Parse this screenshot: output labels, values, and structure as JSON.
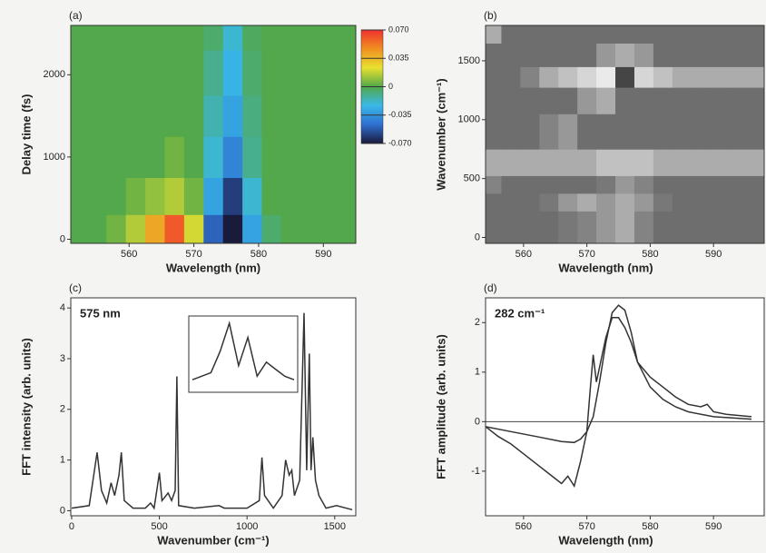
{
  "chart_data": [
    {
      "type": "heatmap",
      "panel": "(a)",
      "xlabel": "Wavelength (nm)",
      "ylabel": "Delay time (fs)",
      "xlim": [
        551,
        595
      ],
      "ylim": [
        -50,
        2600
      ],
      "xticks": [
        560,
        570,
        580,
        590
      ],
      "yticks": [
        0,
        1000,
        2000
      ],
      "x": [
        555,
        558,
        561,
        564,
        567,
        570,
        573,
        576,
        579,
        582,
        585,
        588,
        591,
        594
      ],
      "y": [
        100,
        500,
        1000,
        1500,
        2000,
        2600
      ],
      "z": [
        [
          0,
          0.005,
          0.015,
          0.04,
          0.06,
          0.02,
          -0.05,
          -0.07,
          -0.03,
          -0.005,
          0,
          0,
          0,
          0
        ],
        [
          0,
          0,
          0.005,
          0.01,
          0.015,
          0.005,
          -0.03,
          -0.06,
          -0.02,
          0,
          0,
          0,
          0,
          0
        ],
        [
          0,
          0,
          0,
          0,
          0.005,
          0,
          -0.02,
          -0.04,
          -0.01,
          0,
          0,
          0,
          0,
          0
        ],
        [
          0,
          0,
          0,
          0,
          0,
          0,
          -0.015,
          -0.03,
          -0.008,
          0,
          0,
          0,
          0,
          0
        ],
        [
          0,
          0,
          0,
          0,
          0,
          0,
          -0.01,
          -0.025,
          -0.005,
          0,
          0,
          0,
          0,
          0
        ],
        [
          0,
          0,
          0,
          0,
          0,
          0,
          -0.005,
          -0.02,
          -0.003,
          0,
          0,
          0,
          0,
          0
        ]
      ],
      "zlim": [
        -0.07,
        0.07
      ],
      "colormap": [
        "#1a1a3a",
        "#2f6fd0",
        "#39b8e8",
        "#52a84a",
        "#e8e030",
        "#f09020",
        "#f03030"
      ],
      "zticks": [
        {
          "value": 0.07,
          "label": "0.070"
        },
        {
          "value": 0.035,
          "label": "0.035"
        },
        0,
        {
          "value": -0.035,
          "label": "-0.035"
        },
        {
          "value": -0.07,
          "label": "-0.070"
        }
      ]
    },
    {
      "type": "heatmap-gray",
      "panel": "(b)",
      "xlabel": "Wavelength (nm)",
      "ylabel": "Wavenumber (cm⁻¹)",
      "xlim": [
        554,
        598
      ],
      "ylim": [
        -50,
        1800
      ],
      "xticks": [
        560,
        570,
        580,
        590
      ],
      "yticks": [
        0,
        500,
        1000,
        1500
      ],
      "x": [
        555,
        558,
        561,
        564,
        567,
        570,
        573,
        576,
        579,
        582,
        585,
        588,
        591,
        594
      ],
      "y": [
        150,
        300,
        450,
        600,
        900,
        1200,
        1350,
        1550,
        1750
      ],
      "z": [
        [
          0.3,
          0.3,
          0.3,
          0.3,
          0.35,
          0.4,
          0.5,
          0.6,
          0.4,
          0.3,
          0.3,
          0.3,
          0.3,
          0.3
        ],
        [
          0.3,
          0.3,
          0.3,
          0.35,
          0.5,
          0.6,
          0.5,
          0.6,
          0.5,
          0.35,
          0.3,
          0.3,
          0.3,
          0.3
        ],
        [
          0.4,
          0.3,
          0.3,
          0.3,
          0.3,
          0.3,
          0.35,
          0.5,
          0.4,
          0.3,
          0.3,
          0.3,
          0.3,
          0.3
        ],
        [
          0.6,
          0.6,
          0.6,
          0.6,
          0.6,
          0.6,
          0.7,
          0.7,
          0.7,
          0.6,
          0.6,
          0.6,
          0.6,
          0.6
        ],
        [
          0.3,
          0.3,
          0.3,
          0.4,
          0.5,
          0.3,
          0.3,
          0.3,
          0.3,
          0.3,
          0.3,
          0.3,
          0.3,
          0.3
        ],
        [
          0.3,
          0.3,
          0.3,
          0.3,
          0.3,
          0.5,
          0.6,
          0.3,
          0.3,
          0.3,
          0.3,
          0.3,
          0.3,
          0.3
        ],
        [
          0.3,
          0.3,
          0.4,
          0.6,
          0.7,
          0.8,
          0.9,
          0.1,
          0.8,
          0.7,
          0.6,
          0.6,
          0.6,
          0.6
        ],
        [
          0.3,
          0.3,
          0.3,
          0.3,
          0.3,
          0.3,
          0.5,
          0.6,
          0.5,
          0.3,
          0.3,
          0.3,
          0.3,
          0.3
        ],
        [
          0.6,
          0.3,
          0.3,
          0.3,
          0.3,
          0.3,
          0.3,
          0.3,
          0.3,
          0.3,
          0.3,
          0.3,
          0.3,
          0.3
        ]
      ],
      "zlim": [
        0,
        1
      ],
      "colormap": [
        "#303030",
        "#ffffff"
      ]
    },
    {
      "type": "line",
      "panel": "(c)",
      "xlabel": "Wavenumber (cm⁻¹)",
      "ylabel": "FFT intensity (arb. units)",
      "annotation": "575 nm",
      "xlim": [
        -5,
        1620
      ],
      "ylim": [
        -0.1,
        4.2
      ],
      "xticks": [
        0,
        500,
        1000,
        1500
      ],
      "yticks": [
        0,
        1,
        2,
        3,
        4
      ],
      "series": [
        {
          "color": "#333333",
          "x": [
            0,
            100,
            130,
            145,
            170,
            200,
            225,
            245,
            270,
            283,
            300,
            350,
            420,
            450,
            470,
            490,
            500,
            515,
            550,
            570,
            590,
            600,
            610,
            700,
            840,
            870,
            1000,
            1070,
            1085,
            1100,
            1150,
            1200,
            1220,
            1240,
            1255,
            1270,
            1300,
            1325,
            1340,
            1355,
            1365,
            1375,
            1390,
            1410,
            1450,
            1510,
            1600
          ],
          "y": [
            0.05,
            0.1,
            0.8,
            1.15,
            0.4,
            0.15,
            0.55,
            0.3,
            0.7,
            1.15,
            0.2,
            0.05,
            0.05,
            0.15,
            0.05,
            0.5,
            0.75,
            0.2,
            0.35,
            0.2,
            0.4,
            2.65,
            0.1,
            0.05,
            0.1,
            0.05,
            0.05,
            0.2,
            1.05,
            0.3,
            0.05,
            0.3,
            1.0,
            0.7,
            0.8,
            0.3,
            0.6,
            3.9,
            0.8,
            3.1,
            0.8,
            1.45,
            0.6,
            0.3,
            0.05,
            0.1,
            0.02
          ]
        }
      ],
      "inset": {
        "color": "#333333",
        "values": [
          0.2,
          0.3,
          0.4,
          1.0,
          1.8,
          0.6,
          1.4,
          0.3,
          0.7,
          0.5,
          0.3,
          0.2
        ]
      }
    },
    {
      "type": "line",
      "panel": "(d)",
      "xlabel": "Wavelength (nm)",
      "ylabel": "FFT amplitude (arb. units)",
      "annotation": "282 cm⁻¹",
      "xlim": [
        554,
        598
      ],
      "ylim": [
        -1.9,
        2.5
      ],
      "xticks": [
        560,
        570,
        580,
        590
      ],
      "yticks": [
        -1,
        0,
        1,
        2
      ],
      "hline": 0,
      "series": [
        {
          "color": "#333333",
          "x": [
            554,
            556,
            558,
            560,
            562,
            564,
            566,
            567,
            568,
            569,
            570,
            570.5,
            571,
            571.5,
            572,
            573,
            574,
            575,
            576,
            577,
            578,
            580,
            582,
            584,
            586,
            588,
            589,
            590,
            592,
            596
          ],
          "y": [
            -0.1,
            -0.3,
            -0.45,
            -0.65,
            -0.85,
            -1.05,
            -1.25,
            -1.1,
            -1.3,
            -0.8,
            -0.2,
            0.6,
            1.35,
            0.8,
            1.1,
            1.7,
            2.1,
            2.1,
            1.9,
            1.6,
            1.2,
            0.9,
            0.7,
            0.5,
            0.35,
            0.3,
            0.35,
            0.2,
            0.15,
            0.1
          ]
        },
        {
          "color": "#333333",
          "x": [
            554,
            558,
            562,
            566,
            568,
            569,
            570,
            571,
            572,
            573,
            574,
            575,
            576,
            577,
            578,
            580,
            582,
            584,
            586,
            590,
            596
          ],
          "y": [
            -0.1,
            -0.2,
            -0.3,
            -0.4,
            -0.42,
            -0.35,
            -0.2,
            0.1,
            0.8,
            1.6,
            2.2,
            2.35,
            2.25,
            1.8,
            1.2,
            0.7,
            0.45,
            0.3,
            0.2,
            0.1,
            0.05
          ]
        }
      ]
    }
  ]
}
